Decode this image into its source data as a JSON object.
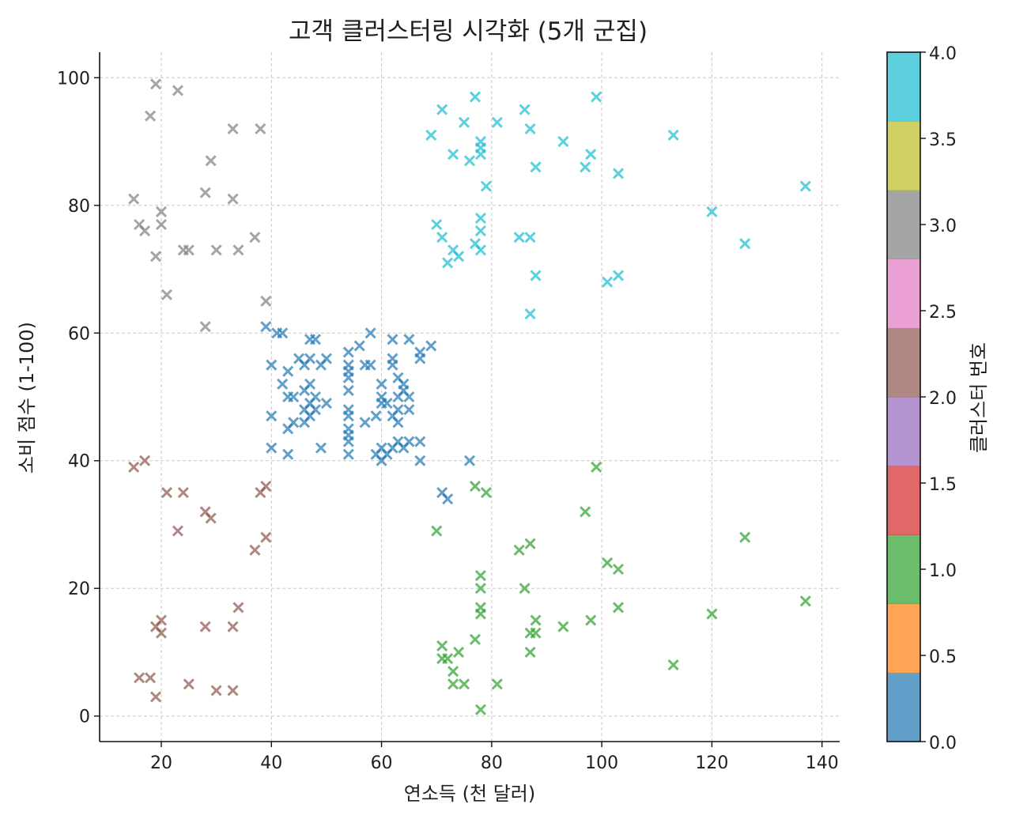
{
  "chart_data": {
    "type": "scatter",
    "title": "고객 클러스터링 시각화 (5개 군집)",
    "xlabel": "연소득 (천 달러)",
    "ylabel": "소비 점수 (1-100)",
    "xlim": [
      8.8,
      143.2
    ],
    "ylim": [
      -4,
      104
    ],
    "xticks": [
      "20",
      "40",
      "60",
      "80",
      "100",
      "120",
      "140"
    ],
    "yticks": [
      "0",
      "20",
      "40",
      "60",
      "80",
      "100"
    ],
    "grid": true,
    "marker": "x",
    "colorbar": {
      "label": "클러스터 번호",
      "range": [
        0,
        4
      ],
      "ticks": [
        "0.0",
        "0.5",
        "1.0",
        "1.5",
        "2.0",
        "2.5",
        "3.0",
        "3.5",
        "4.0"
      ],
      "colors": [
        "#1f77b4",
        "#ff7f0e",
        "#2ca02c",
        "#d62728",
        "#9467bd",
        "#8c564b",
        "#e377c2",
        "#7f7f7f",
        "#bcbd22",
        "#17becf"
      ]
    },
    "series": [
      {
        "cluster": 0,
        "color": "#1f77b4",
        "points": [
          [
            39,
            61
          ],
          [
            40,
            55
          ],
          [
            40,
            47
          ],
          [
            40,
            42
          ],
          [
            41,
            60
          ],
          [
            42,
            60
          ],
          [
            42,
            52
          ],
          [
            43,
            54
          ],
          [
            43,
            50
          ],
          [
            43,
            45
          ],
          [
            43,
            41
          ],
          [
            44,
            50
          ],
          [
            44,
            46
          ],
          [
            45,
            56
          ],
          [
            46,
            55
          ],
          [
            46,
            51
          ],
          [
            46,
            48
          ],
          [
            46,
            46
          ],
          [
            47,
            59
          ],
          [
            47,
            56
          ],
          [
            47,
            52
          ],
          [
            47,
            49
          ],
          [
            47,
            47
          ],
          [
            48,
            59
          ],
          [
            48,
            50
          ],
          [
            48,
            48
          ],
          [
            49,
            55
          ],
          [
            49,
            42
          ],
          [
            50,
            56
          ],
          [
            50,
            49
          ],
          [
            54,
            57
          ],
          [
            54,
            55
          ],
          [
            54,
            54
          ],
          [
            54,
            53
          ],
          [
            54,
            51
          ],
          [
            54,
            48
          ],
          [
            54,
            47
          ],
          [
            54,
            45
          ],
          [
            54,
            44
          ],
          [
            54,
            43
          ],
          [
            54,
            41
          ],
          [
            56,
            58
          ],
          [
            57,
            55
          ],
          [
            57,
            46
          ],
          [
            58,
            60
          ],
          [
            58,
            55
          ],
          [
            59,
            47
          ],
          [
            59,
            41
          ],
          [
            60,
            52
          ],
          [
            60,
            50
          ],
          [
            60,
            49
          ],
          [
            60,
            42
          ],
          [
            60,
            40
          ],
          [
            61,
            49
          ],
          [
            61,
            41
          ],
          [
            62,
            59
          ],
          [
            62,
            56
          ],
          [
            62,
            55
          ],
          [
            62,
            47
          ],
          [
            62,
            42
          ],
          [
            63,
            53
          ],
          [
            63,
            50
          ],
          [
            63,
            48
          ],
          [
            63,
            46
          ],
          [
            63,
            43
          ],
          [
            64,
            52
          ],
          [
            64,
            51
          ],
          [
            64,
            42
          ],
          [
            65,
            59
          ],
          [
            65,
            50
          ],
          [
            65,
            48
          ],
          [
            65,
            43
          ],
          [
            67,
            57
          ],
          [
            67,
            56
          ],
          [
            67,
            43
          ],
          [
            67,
            40
          ],
          [
            69,
            58
          ],
          [
            71,
            35
          ],
          [
            72,
            34
          ],
          [
            76,
            40
          ]
        ]
      },
      {
        "cluster": 1,
        "color": "#2ca02c",
        "points": [
          [
            70,
            29
          ],
          [
            71,
            11
          ],
          [
            71,
            9
          ],
          [
            72,
            9
          ],
          [
            73,
            7
          ],
          [
            73,
            5
          ],
          [
            74,
            10
          ],
          [
            75,
            5
          ],
          [
            77,
            12
          ],
          [
            77,
            36
          ],
          [
            78,
            22
          ],
          [
            78,
            20
          ],
          [
            78,
            17
          ],
          [
            78,
            16
          ],
          [
            78,
            1
          ],
          [
            79,
            35
          ],
          [
            81,
            5
          ],
          [
            85,
            26
          ],
          [
            86,
            20
          ],
          [
            87,
            27
          ],
          [
            87,
            13
          ],
          [
            87,
            10
          ],
          [
            88,
            15
          ],
          [
            88,
            13
          ],
          [
            93,
            14
          ],
          [
            97,
            32
          ],
          [
            98,
            15
          ],
          [
            99,
            39
          ],
          [
            101,
            24
          ],
          [
            103,
            23
          ],
          [
            103,
            17
          ],
          [
            113,
            8
          ],
          [
            120,
            16
          ],
          [
            126,
            28
          ],
          [
            137,
            18
          ]
        ]
      },
      {
        "cluster": 2,
        "color": "#8c564b",
        "points": [
          [
            15,
            39
          ],
          [
            16,
            6
          ],
          [
            17,
            40
          ],
          [
            18,
            6
          ],
          [
            19,
            14
          ],
          [
            19,
            3
          ],
          [
            20,
            15
          ],
          [
            20,
            13
          ],
          [
            21,
            35
          ],
          [
            23,
            29
          ],
          [
            24,
            35
          ],
          [
            25,
            5
          ],
          [
            28,
            14
          ],
          [
            28,
            32
          ],
          [
            29,
            31
          ],
          [
            30,
            4
          ],
          [
            33,
            14
          ],
          [
            33,
            4
          ],
          [
            34,
            17
          ],
          [
            37,
            26
          ],
          [
            38,
            35
          ],
          [
            39,
            36
          ],
          [
            39,
            28
          ]
        ]
      },
      {
        "cluster": 3,
        "color": "#7f7f7f",
        "points": [
          [
            15,
            81
          ],
          [
            16,
            77
          ],
          [
            17,
            76
          ],
          [
            18,
            94
          ],
          [
            19,
            99
          ],
          [
            19,
            72
          ],
          [
            20,
            79
          ],
          [
            20,
            77
          ],
          [
            21,
            66
          ],
          [
            23,
            98
          ],
          [
            24,
            73
          ],
          [
            25,
            73
          ],
          [
            28,
            82
          ],
          [
            28,
            61
          ],
          [
            29,
            87
          ],
          [
            30,
            73
          ],
          [
            33,
            92
          ],
          [
            33,
            81
          ],
          [
            34,
            73
          ],
          [
            37,
            75
          ],
          [
            38,
            92
          ],
          [
            39,
            65
          ]
        ]
      },
      {
        "cluster": 4,
        "color": "#17becf",
        "points": [
          [
            69,
            91
          ],
          [
            70,
            77
          ],
          [
            71,
            95
          ],
          [
            71,
            75
          ],
          [
            72,
            71
          ],
          [
            73,
            88
          ],
          [
            73,
            73
          ],
          [
            74,
            72
          ],
          [
            75,
            93
          ],
          [
            76,
            87
          ],
          [
            77,
            97
          ],
          [
            77,
            74
          ],
          [
            78,
            90
          ],
          [
            78,
            89
          ],
          [
            78,
            88
          ],
          [
            78,
            78
          ],
          [
            78,
            76
          ],
          [
            78,
            73
          ],
          [
            79,
            83
          ],
          [
            81,
            93
          ],
          [
            85,
            75
          ],
          [
            86,
            95
          ],
          [
            87,
            92
          ],
          [
            87,
            75
          ],
          [
            87,
            63
          ],
          [
            88,
            86
          ],
          [
            88,
            69
          ],
          [
            93,
            90
          ],
          [
            97,
            86
          ],
          [
            98,
            88
          ],
          [
            99,
            97
          ],
          [
            101,
            68
          ],
          [
            103,
            85
          ],
          [
            103,
            69
          ],
          [
            113,
            91
          ],
          [
            120,
            79
          ],
          [
            126,
            74
          ],
          [
            137,
            83
          ]
        ]
      }
    ]
  }
}
